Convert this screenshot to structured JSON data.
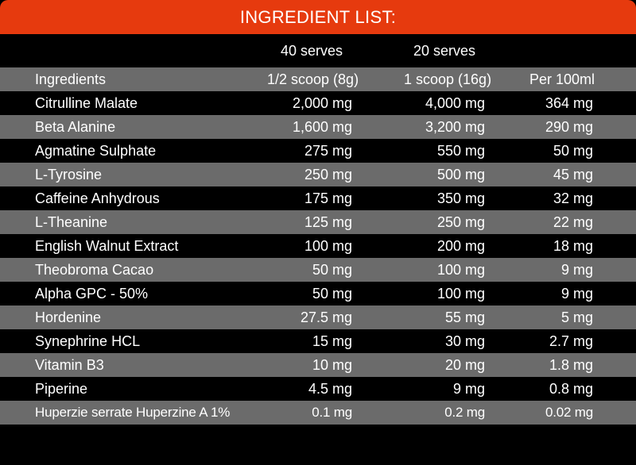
{
  "title": "INGREDIENT LIST:",
  "serves": {
    "a": "40 serves",
    "b": "20 serves"
  },
  "columns": {
    "ingredients": "Ingredients",
    "half_scoop": "1/2 scoop (8g)",
    "one_scoop": "1 scoop (16g)",
    "per_100ml": "Per 100ml"
  },
  "rows": [
    {
      "name": "Citrulline Malate",
      "half": "2,000 mg",
      "one": "4,000 mg",
      "per": "364 mg"
    },
    {
      "name": "Beta Alanine",
      "half": "1,600 mg",
      "one": "3,200 mg",
      "per": "290 mg"
    },
    {
      "name": "Agmatine Sulphate",
      "half": "275 mg",
      "one": "550 mg",
      "per": "50 mg"
    },
    {
      "name": "L-Tyrosine",
      "half": "250 mg",
      "one": "500 mg",
      "per": "45 mg"
    },
    {
      "name": "Caffeine Anhydrous",
      "half": "175 mg",
      "one": "350 mg",
      "per": "32 mg"
    },
    {
      "name": "L-Theanine",
      "half": "125 mg",
      "one": "250 mg",
      "per": "22 mg"
    },
    {
      "name": "English Walnut Extract",
      "half": "100 mg",
      "one": "200 mg",
      "per": "18 mg"
    },
    {
      "name": "Theobroma Cacao",
      "half": "50 mg",
      "one": "100 mg",
      "per": "9 mg"
    },
    {
      "name": "Alpha GPC - 50%",
      "half": "50 mg",
      "one": "100 mg",
      "per": "9 mg"
    },
    {
      "name": "Hordenine",
      "half": "27.5 mg",
      "one": "55 mg",
      "per": "5 mg"
    },
    {
      "name": "Synephrine HCL",
      "half": "15 mg",
      "one": "30 mg",
      "per": "2.7 mg"
    },
    {
      "name": "Vitamin B3",
      "half": "10 mg",
      "one": "20 mg",
      "per": "1.8 mg"
    },
    {
      "name": "Piperine",
      "half": "4.5 mg",
      "one": "9 mg",
      "per": "0.8 mg"
    },
    {
      "name": "Huperzie serrate Huperzine A 1%",
      "half": "0.1 mg",
      "one": "0.2 mg",
      "per": "0.02 mg"
    }
  ],
  "colors": {
    "header": "#e63a0e",
    "dark_row": "#000000",
    "grey_row": "#6b6b6b",
    "text": "#ffffff"
  }
}
